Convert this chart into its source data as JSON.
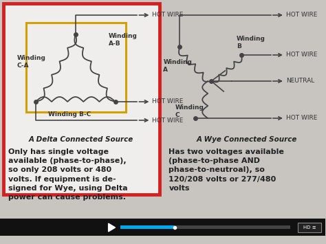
{
  "bg_color": "#c8c4c0",
  "left_bg": "#f0eeec",
  "left_border": "#d42020",
  "left_inner_box": "#d4a000",
  "title_left": "A Delta Connected Source",
  "title_right": "A Wye Connected Source",
  "desc_left": "Only has single voltage\navailable (phase-to-phase),\nso only 208 volts or 480\nvolts. If equipment is de-\nsigned for Wye, using Delta\npower can cause problems.",
  "desc_right": "Has two voltages available\n(phase-to-phase AND\nphase-to-neutroal), so\n120/208 volts or 277/480\nvolts",
  "wire_color": "#444444",
  "text_color": "#222222",
  "label_color": "#333333"
}
